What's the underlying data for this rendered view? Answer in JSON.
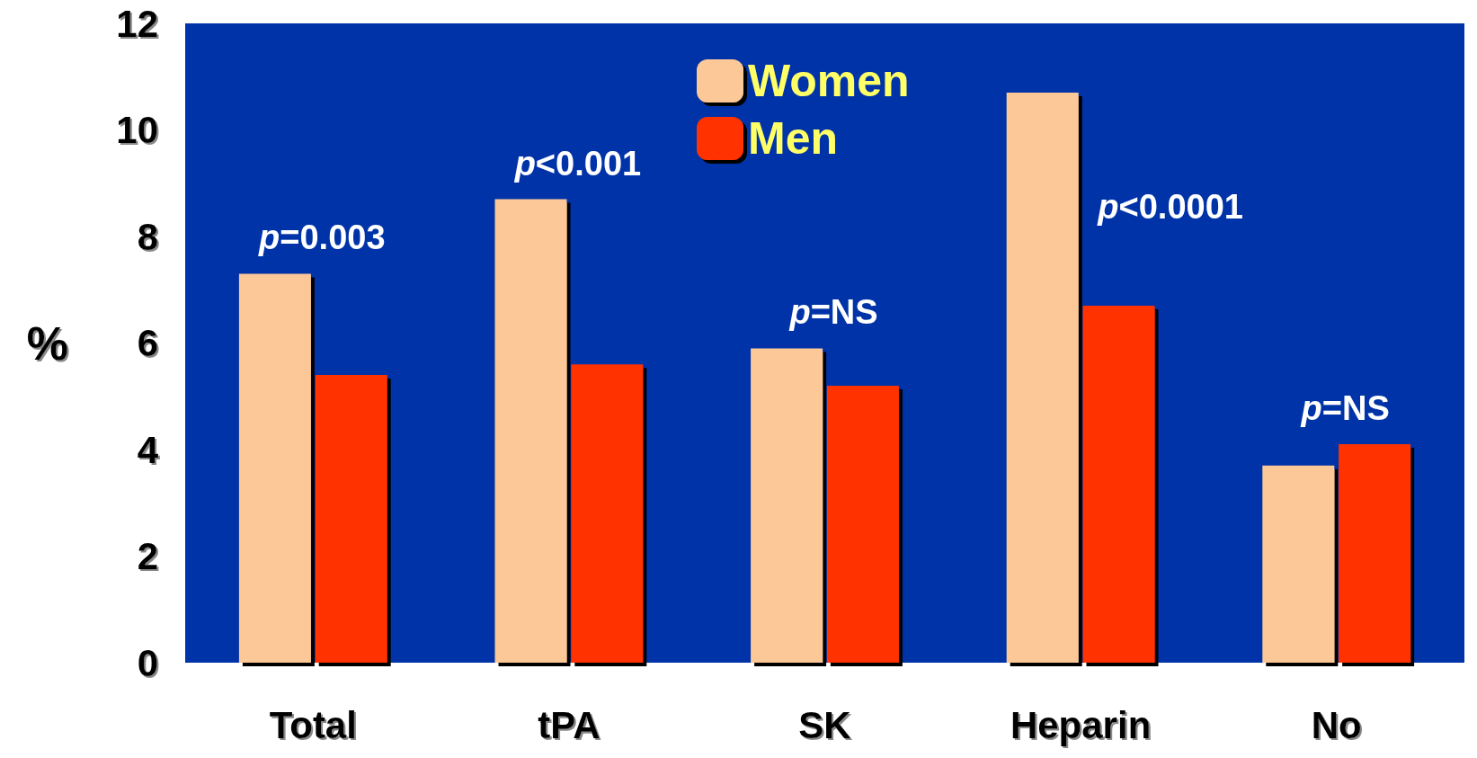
{
  "chart_data": {
    "type": "bar",
    "ylabel": "%",
    "categories": [
      "Total",
      "tPA",
      "SK",
      "Heparin",
      "No"
    ],
    "series": [
      {
        "name": "Women",
        "color": "#fdc897",
        "values": [
          7.3,
          8.7,
          5.9,
          10.7,
          3.7
        ]
      },
      {
        "name": "Men",
        "color": "#ff3300",
        "values": [
          5.4,
          5.6,
          5.2,
          6.7,
          4.1
        ]
      }
    ],
    "ylim": [
      0,
      12
    ],
    "yticks": [
      0,
      2,
      4,
      6,
      8,
      10,
      12
    ],
    "grid": false,
    "legend": "top",
    "annotations": [
      "p=0.003",
      "p<0.001",
      "p=NS",
      "p<0.0001",
      "p=NS"
    ]
  }
}
